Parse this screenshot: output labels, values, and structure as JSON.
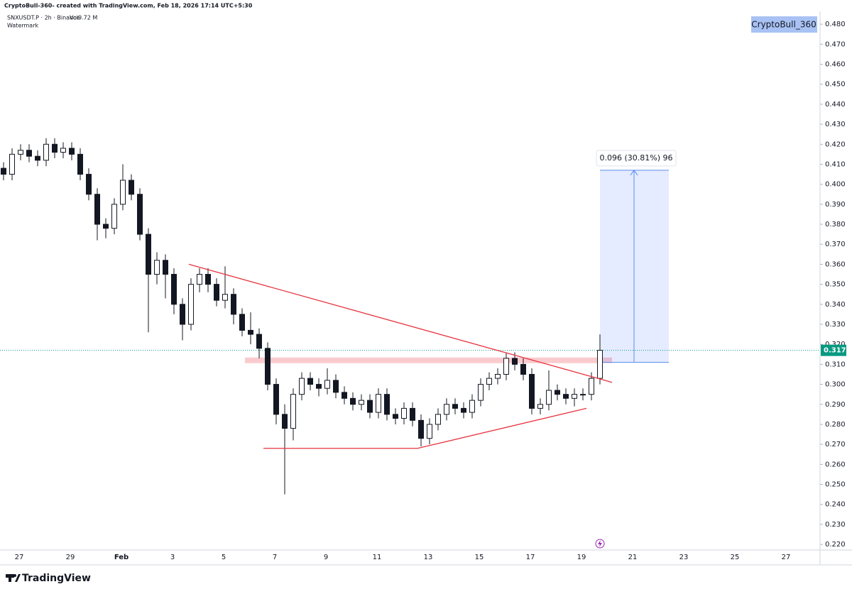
{
  "header": {
    "caption": "CryptoBull-360- created with TradingView.com, Feb 18, 2026 17:14 UTC+5:30",
    "symbol": "SNXUSDT.P · 2h · Binance",
    "volume": "Vol9.72 M",
    "study": "Watermark",
    "watermark": "CryptoBull_360",
    "brand": "TradingView"
  },
  "chart_data": {
    "type": "candlestick",
    "x_labels": [
      "27",
      "29",
      "Feb",
      "3",
      "5",
      "7",
      "9",
      "11",
      "13",
      "15",
      "17",
      "19",
      "21",
      "23",
      "25",
      "27"
    ],
    "open": [
      0.408,
      0.405,
      0.415,
      0.417,
      0.414,
      0.412,
      0.42,
      0.416,
      0.418,
      0.415,
      0.405,
      0.395,
      0.38,
      0.378,
      0.39,
      0.402,
      0.395,
      0.375,
      0.355,
      0.362,
      0.355,
      0.34,
      0.33,
      0.35,
      0.355,
      0.35,
      0.342,
      0.345,
      0.335,
      0.327,
      0.325,
      0.318,
      0.3,
      0.285,
      0.278,
      0.295,
      0.303,
      0.3,
      0.298,
      0.302,
      0.296,
      0.293,
      0.29,
      0.292,
      0.286,
      0.295,
      0.285,
      0.283,
      0.288,
      0.282,
      0.273,
      0.28,
      0.285,
      0.29,
      0.288,
      0.286,
      0.292,
      0.3,
      0.303,
      0.305,
      0.313,
      0.31,
      0.305,
      0.288,
      0.29,
      0.297,
      0.295,
      0.293,
      0.295,
      0.295,
      0.303
    ],
    "high": [
      0.411,
      0.418,
      0.42,
      0.42,
      0.417,
      0.423,
      0.423,
      0.421,
      0.421,
      0.418,
      0.408,
      0.398,
      0.383,
      0.393,
      0.41,
      0.405,
      0.398,
      0.378,
      0.366,
      0.365,
      0.358,
      0.343,
      0.353,
      0.358,
      0.358,
      0.353,
      0.359,
      0.348,
      0.338,
      0.336,
      0.328,
      0.321,
      0.303,
      0.29,
      0.298,
      0.306,
      0.306,
      0.303,
      0.308,
      0.305,
      0.299,
      0.296,
      0.295,
      0.295,
      0.298,
      0.298,
      0.288,
      0.291,
      0.291,
      0.285,
      0.283,
      0.288,
      0.293,
      0.293,
      0.291,
      0.295,
      0.303,
      0.306,
      0.308,
      0.316,
      0.316,
      0.313,
      0.308,
      0.293,
      0.307,
      0.3,
      0.298,
      0.298,
      0.298,
      0.306,
      0.325
    ],
    "low": [
      0.402,
      0.402,
      0.412,
      0.411,
      0.409,
      0.409,
      0.413,
      0.413,
      0.412,
      0.402,
      0.392,
      0.372,
      0.373,
      0.375,
      0.387,
      0.392,
      0.372,
      0.326,
      0.35,
      0.343,
      0.335,
      0.322,
      0.327,
      0.346,
      0.346,
      0.339,
      0.338,
      0.33,
      0.324,
      0.32,
      0.313,
      0.297,
      0.28,
      0.245,
      0.272,
      0.292,
      0.297,
      0.294,
      0.295,
      0.293,
      0.29,
      0.287,
      0.287,
      0.283,
      0.283,
      0.282,
      0.28,
      0.28,
      0.279,
      0.269,
      0.27,
      0.277,
      0.282,
      0.285,
      0.283,
      0.283,
      0.289,
      0.297,
      0.3,
      0.302,
      0.307,
      0.302,
      0.285,
      0.285,
      0.287,
      0.292,
      0.29,
      0.289,
      0.292,
      0.292,
      0.3
    ],
    "close": [
      0.405,
      0.415,
      0.417,
      0.414,
      0.412,
      0.42,
      0.416,
      0.418,
      0.415,
      0.405,
      0.395,
      0.38,
      0.378,
      0.39,
      0.402,
      0.395,
      0.375,
      0.355,
      0.362,
      0.355,
      0.34,
      0.33,
      0.35,
      0.355,
      0.35,
      0.342,
      0.345,
      0.335,
      0.327,
      0.325,
      0.318,
      0.3,
      0.285,
      0.278,
      0.295,
      0.303,
      0.3,
      0.298,
      0.302,
      0.296,
      0.293,
      0.29,
      0.292,
      0.286,
      0.295,
      0.285,
      0.283,
      0.288,
      0.282,
      0.273,
      0.28,
      0.285,
      0.29,
      0.288,
      0.286,
      0.292,
      0.3,
      0.303,
      0.305,
      0.313,
      0.31,
      0.305,
      0.288,
      0.29,
      0.297,
      0.295,
      0.293,
      0.295,
      0.295,
      0.303,
      0.317
    ],
    "up_color": "#ffffff",
    "down_color": "#131722",
    "ylim": [
      0.2172,
      0.4921
    ],
    "yticks": [
      {
        "value": 0.22,
        "label": "0.220"
      },
      {
        "value": 0.23,
        "label": "0.230"
      },
      {
        "value": 0.24,
        "label": "0.240"
      },
      {
        "value": 0.25,
        "label": "0.250"
      },
      {
        "value": 0.26,
        "label": "0.260"
      },
      {
        "value": 0.27,
        "label": "0.270"
      },
      {
        "value": 0.28,
        "label": "0.280"
      },
      {
        "value": 0.29,
        "label": "0.290"
      },
      {
        "value": 0.3,
        "label": "0.300"
      },
      {
        "value": 0.31,
        "label": "0.310"
      },
      {
        "value": 0.32,
        "label": "0.320"
      },
      {
        "value": 0.33,
        "label": "0.330"
      },
      {
        "value": 0.34,
        "label": "0.340"
      },
      {
        "value": 0.35,
        "label": "0.350"
      },
      {
        "value": 0.36,
        "label": "0.360"
      },
      {
        "value": 0.37,
        "label": "0.370"
      },
      {
        "value": 0.38,
        "label": "0.380"
      },
      {
        "value": 0.39,
        "label": "0.390"
      },
      {
        "value": 0.4,
        "label": "0.400"
      },
      {
        "value": 0.41,
        "label": "0.410"
      },
      {
        "value": 0.42,
        "label": "0.420"
      },
      {
        "value": 0.43,
        "label": "0.430"
      },
      {
        "value": 0.44,
        "label": "0.440"
      },
      {
        "value": 0.45,
        "label": "0.450"
      },
      {
        "value": 0.46,
        "label": "0.460"
      },
      {
        "value": 0.47,
        "label": "0.470"
      },
      {
        "value": 0.48,
        "label": "0.480"
      }
    ],
    "last_price": {
      "value": 0.317,
      "label": "0.317"
    },
    "resistance_zone": 0.312,
    "upper_trendline": [
      0.36,
      0.301
    ],
    "lower_trendline": [
      0.268,
      0.268,
      0.288
    ],
    "measure": {
      "from": 0.311,
      "to": 0.407,
      "label": "0.096 (30.81%) 96"
    }
  }
}
